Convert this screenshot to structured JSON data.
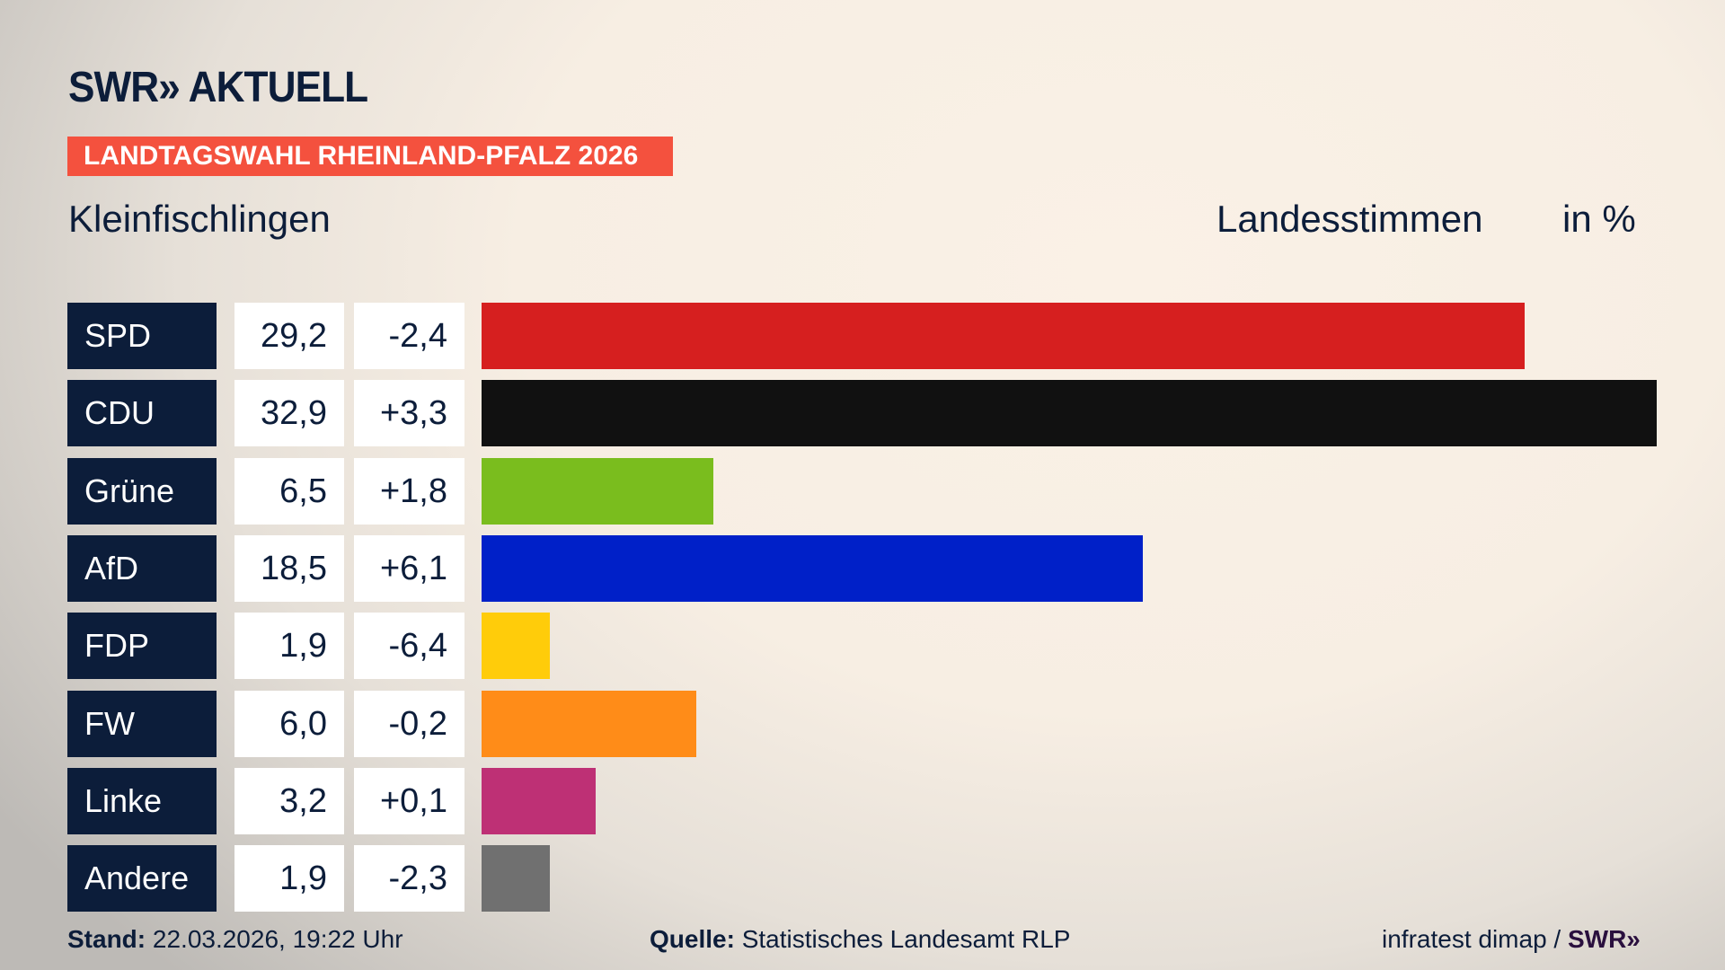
{
  "header": {
    "logo": "SWR» AKTUELL",
    "banner": "LANDTAGSWAHL RHEINLAND-PFALZ 2026",
    "place": "Kleinfischlingen",
    "vote_type": "Landesstimmen",
    "unit": "in %"
  },
  "colors": {
    "banner": "#f4513e",
    "navy": "#0c1d3a"
  },
  "chart_data": {
    "type": "bar",
    "orientation": "horizontal",
    "xlim": [
      0,
      32.9
    ],
    "categories": [
      "SPD",
      "CDU",
      "Grüne",
      "AfD",
      "FDP",
      "FW",
      "Linke",
      "Andere"
    ],
    "values": [
      29.2,
      32.9,
      6.5,
      18.5,
      1.9,
      6.0,
      3.2,
      1.9
    ],
    "value_labels": [
      "29,2",
      "32,9",
      "6,5",
      "18,5",
      "1,9",
      "6,0",
      "3,2",
      "1,9"
    ],
    "diff_labels": [
      "-2,4",
      "+3,3",
      "+1,8",
      "+6,1",
      "-6,4",
      "-0,2",
      "+0,1",
      "-2,3"
    ],
    "colors": [
      "#d61f1f",
      "#111111",
      "#7abd1e",
      "#0020c8",
      "#ffcc0a",
      "#ff8c18",
      "#be3075",
      "#707070"
    ]
  },
  "footer": {
    "stand_label": "Stand:",
    "stand_value": "22.03.2026, 19:22 Uhr",
    "source_label": "Quelle:",
    "source_value": "Statistisches Landesamt RLP",
    "credit": "infratest dimap /",
    "credit_logo": "SWR»"
  }
}
